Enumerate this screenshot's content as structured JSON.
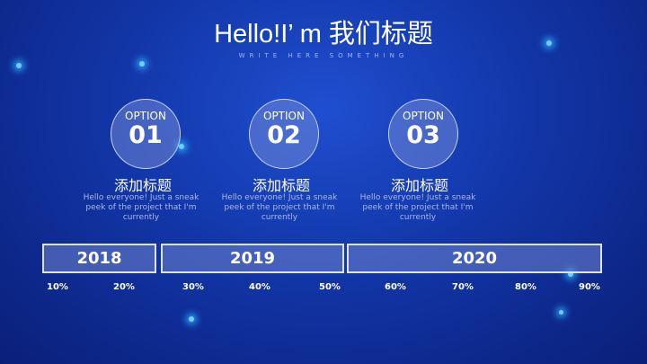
{
  "header": {
    "title": "Hello!I’ m 我们标题",
    "subtitle": "WRITE HERE SOMETHING"
  },
  "options": [
    {
      "label": "OPTION",
      "number": "01",
      "heading": "添加标题",
      "text": "Hello everyone! Just a sneak peek of the project that I'm currently"
    },
    {
      "label": "OPTION",
      "number": "02",
      "heading": "添加标题",
      "text": "Hello everyone! Just a sneak peek of the project that I'm currently"
    },
    {
      "label": "OPTION",
      "number": "03",
      "heading": "添加标题",
      "text": "Hello everyone! Just a sneak peek of the project that I'm currently"
    }
  ],
  "timeline": {
    "years": [
      "2018",
      "2019",
      "2020"
    ],
    "percents": [
      "10%",
      "20%",
      "30%",
      "40%",
      "50%",
      "60%",
      "70%",
      "80%",
      "90%"
    ]
  }
}
